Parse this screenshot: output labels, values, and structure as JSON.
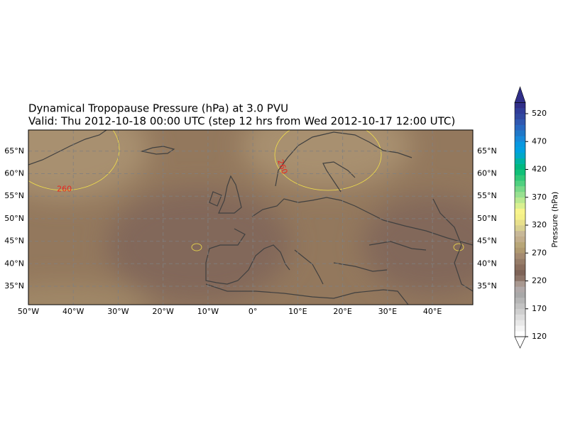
{
  "map": {
    "title": "Dynamical Tropopause Pressure (hPa) at 3.0 PVU",
    "subtitle": "Valid: Thu 2012-10-18 00:00 UTC (step 12 hrs from Wed 2012-10-17 12:00 UTC)",
    "lon_range": [
      -50,
      49
    ],
    "lat_range": [
      30.9,
      69.7
    ],
    "lon_ticks": [
      {
        "value": -50,
        "label": "50°W"
      },
      {
        "value": -40,
        "label": "40°W"
      },
      {
        "value": -30,
        "label": "30°W"
      },
      {
        "value": -20,
        "label": "20°W"
      },
      {
        "value": -10,
        "label": "10°W"
      },
      {
        "value": 0,
        "label": "0°"
      },
      {
        "value": 10,
        "label": "10°E"
      },
      {
        "value": 20,
        "label": "20°E"
      },
      {
        "value": 30,
        "label": "30°E"
      },
      {
        "value": 40,
        "label": "40°E"
      }
    ],
    "lat_ticks": [
      {
        "value": 35,
        "label": "35°N"
      },
      {
        "value": 40,
        "label": "40°N"
      },
      {
        "value": 45,
        "label": "45°N"
      },
      {
        "value": 50,
        "label": "50°N"
      },
      {
        "value": 55,
        "label": "55°N"
      },
      {
        "value": 60,
        "label": "60°N"
      },
      {
        "value": 65,
        "label": "65°N"
      }
    ],
    "grid": true,
    "contour_labels": [
      {
        "text": "260",
        "lon": -42,
        "lat": 56.5,
        "angle": 0,
        "color": "#e8261e"
      },
      {
        "text": "260",
        "lon": 6.5,
        "lat": 61.5,
        "angle": 70,
        "color": "#e8261e"
      }
    ],
    "colorbar": {
      "label": "Pressure (hPa)",
      "lim": [
        120,
        540
      ],
      "step": 10,
      "ticks": [
        120,
        170,
        220,
        270,
        320,
        370,
        420,
        470,
        520
      ],
      "colors": [
        "#ffffff",
        "#f4f4f4",
        "#e8e8e8",
        "#dcdcdc",
        "#cfcfcf",
        "#c2c2c2",
        "#b5b5b5",
        "#a8a8a8",
        "#b0a8a8",
        "#a89890",
        "#8c7468",
        "#7e6458",
        "#8a6e5e",
        "#967c68",
        "#a48a70",
        "#b09a70",
        "#b8a678",
        "#c2ae8c",
        "#c8b898",
        "#d8d090",
        "#e8e08c",
        "#f4f088",
        "#f8f48c",
        "#d8f090",
        "#b8e890",
        "#98e090",
        "#78d888",
        "#50d080",
        "#30c878",
        "#10c078",
        "#00b880",
        "#00b4a0",
        "#00a8c8",
        "#00a0e0",
        "#0898e0",
        "#1888d8",
        "#2078c8",
        "#2868c0",
        "#3058b0",
        "#3048a0",
        "#303c98",
        "#302e88"
      ]
    }
  }
}
